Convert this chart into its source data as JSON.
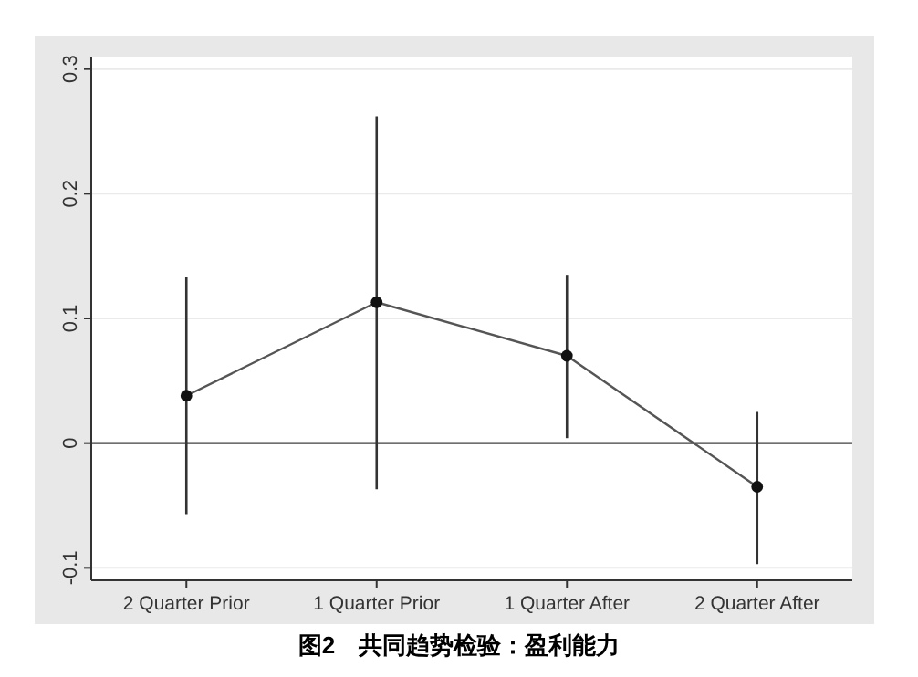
{
  "chart_data": {
    "type": "line",
    "categories": [
      "2 Quarter Prior",
      "1 Quarter Prior",
      "1 Quarter After",
      "2 Quarter After"
    ],
    "series": [
      {
        "color": "#555555",
        "values": [
          0.038,
          0.113,
          0.07,
          -0.035
        ],
        "errors": [
          [
            -0.057,
            0.133
          ],
          [
            -0.037,
            0.262
          ],
          [
            0.004,
            0.135
          ],
          [
            -0.097,
            0.025
          ]
        ]
      }
    ],
    "ylim": [
      -0.11,
      0.31
    ],
    "yticks": [
      -0.1,
      0,
      0.1,
      0.2,
      0.3
    ],
    "grid": "y",
    "marker": "circle",
    "line_style": "solid",
    "ref_lines": [
      {
        "axis": "y",
        "value": 0,
        "color": "#444444"
      }
    ],
    "annotations": [
      "图2　共同趋势检验：盈利能力"
    ]
  }
}
